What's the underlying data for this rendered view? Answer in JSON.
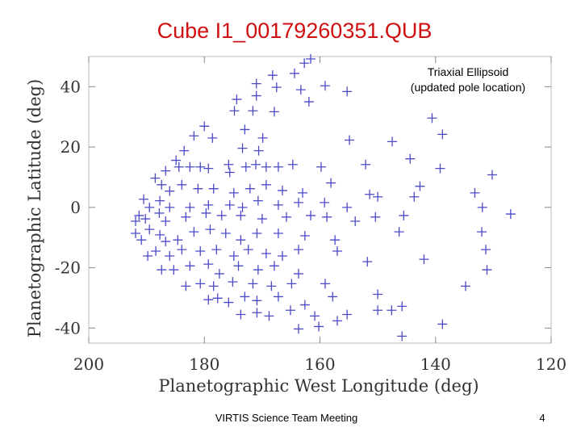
{
  "title": "Cube I1_00179260351.QUB",
  "footer": "VIRTIS Science Team Meeting",
  "page_number": "4",
  "chart_data": {
    "type": "scatter",
    "annotation": [
      "Triaxial Ellipsoid",
      "(updated pole location)"
    ],
    "x_label": "Planetographic West Longitude (deg)",
    "y_label": "Planetographic Latitude (deg)",
    "color": "#4b4bc8",
    "xlim": [
      200,
      120
    ],
    "xticks": [
      200,
      180,
      160,
      140,
      120
    ],
    "ylim": [
      -45,
      50
    ],
    "yticks": [
      -40,
      -20,
      0,
      20,
      40
    ],
    "x": [
      162.7,
      161.6,
      164.4,
      168.2,
      171,
      167.5,
      163.3,
      161.9,
      159.1,
      155.3,
      174.4,
      174.8,
      171.6,
      171,
      167.9,
      180,
      178.6,
      181.8,
      173,
      173.4,
      169.9,
      170.6,
      154.9,
      147.5,
      140.6,
      138.8,
      183.5,
      184.9,
      186.7,
      184.4,
      182.5,
      180.7,
      179.3,
      175.8,
      175.6,
      172.8,
      171.1,
      169.3,
      167.2,
      164.7,
      159.8,
      152.1,
      144.4,
      139.2,
      130.2,
      188.5,
      187.4,
      186,
      183.9,
      181.1,
      178.4,
      174.9,
      172.1,
      169.3,
      166.5,
      163,
      158.1,
      151.4,
      142.7,
      133.2,
      190.5,
      189.5,
      187.7,
      186,
      182.5,
      179.3,
      175.6,
      173.4,
      170.7,
      167.2,
      163.7,
      159.2,
      155.3,
      150,
      143.7,
      131.9,
      127,
      191.9,
      191.3,
      190.2,
      187.8,
      186.7,
      183.2,
      179.7,
      177,
      173.7,
      170,
      165.8,
      161.6,
      158.8,
      153.9,
      150.4,
      145.5,
      191.9,
      190.9,
      189.5,
      187.7,
      186.7,
      184.6,
      181.8,
      179,
      176.3,
      173.7,
      170.9,
      167.2,
      162.6,
      157.4,
      146.3,
      132,
      189.8,
      188.4,
      186,
      183.9,
      180.7,
      177.9,
      174.9,
      172.4,
      169.3,
      166.5,
      163.7,
      157,
      151.8,
      142,
      131.3,
      187.4,
      185.3,
      182.5,
      179.3,
      177.4,
      174.1,
      170.7,
      167.9,
      163.7,
      131.1,
      183.2,
      180.7,
      178.4,
      175.1,
      171.6,
      168.4,
      164.9,
      159.1,
      150,
      134.8,
      179.3,
      177.7,
      175.8,
      173,
      170.9,
      167.2,
      162.6,
      157.8,
      173.7,
      170.9,
      168.8,
      165.1,
      160.9,
      155.3,
      150,
      147.6,
      145.8,
      163.7,
      160.2,
      157,
      138.8,
      145.8
    ],
    "values": [
      47.8,
      49.2,
      44.4,
      43.8,
      41,
      39.8,
      39,
      35,
      40.3,
      38.4,
      35.8,
      32,
      32,
      37,
      31.7,
      26.9,
      23,
      23.7,
      25.8,
      19.6,
      23,
      18.8,
      22.3,
      21.8,
      29.6,
      24.2,
      18.8,
      15.6,
      12.1,
      13.4,
      13.4,
      13.4,
      12.9,
      14.2,
      11.6,
      13.4,
      14.2,
      13.4,
      13.4,
      14.2,
      13.4,
      14.2,
      16.1,
      12.9,
      10.8,
      9.7,
      7.5,
      5.4,
      7.5,
      6.2,
      6.2,
      4.8,
      6.2,
      7.5,
      5.6,
      4.8,
      8.1,
      4.3,
      7,
      4.8,
      2.7,
      0,
      2.2,
      0,
      0,
      0.8,
      0.8,
      0,
      2.2,
      0.8,
      1.6,
      1.6,
      0,
      3.5,
      3.5,
      0,
      -2.2,
      -4.6,
      -2.7,
      -3.8,
      -1.9,
      -4.6,
      -3.2,
      -1.9,
      -2.7,
      -2.7,
      -3.8,
      -3.2,
      -2.7,
      -3.2,
      -4.6,
      -3.2,
      -2.7,
      -8.6,
      -10.8,
      -7.3,
      -9.1,
      -11.3,
      -10.8,
      -8.1,
      -7.3,
      -8.6,
      -10.8,
      -8.6,
      -8.6,
      -9.4,
      -10.8,
      -8.1,
      -8.1,
      -16.1,
      -14.5,
      -16.1,
      -14,
      -14.5,
      -14,
      -16.1,
      -14,
      -15.3,
      -16.1,
      -14,
      -14.5,
      -18,
      -17.2,
      -14,
      -20.7,
      -20.7,
      -19.4,
      -18.8,
      -22,
      -19.4,
      -20.7,
      -19.4,
      -22,
      -20.7,
      -26.1,
      -25.3,
      -26.1,
      -24.7,
      -25.3,
      -26.1,
      -25.3,
      -25.3,
      -28.8,
      -26.1,
      -30.6,
      -30.1,
      -31.5,
      -29.6,
      -30.9,
      -29.6,
      -32.3,
      -29.6,
      -35.5,
      -34.9,
      -36,
      -34.1,
      -36,
      -35.5,
      -34.1,
      -34.1,
      -32.8,
      -40.3,
      -39.5,
      -37.6,
      -38.7,
      -42.7
    ]
  }
}
